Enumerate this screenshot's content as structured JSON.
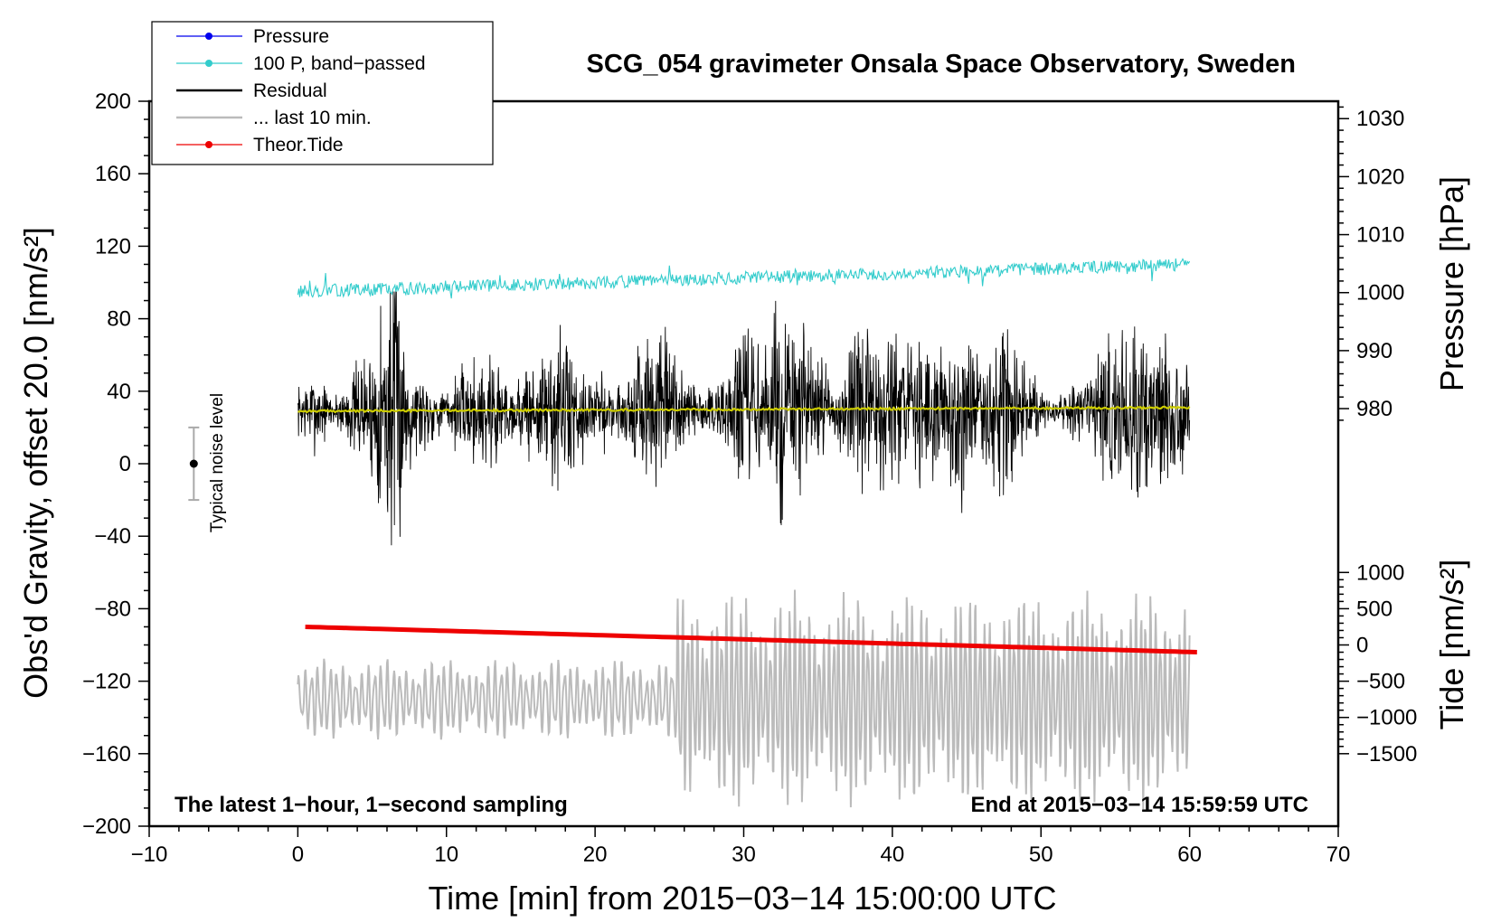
{
  "chart_data": {
    "type": "line",
    "title": "SCG_054 gravimeter Onsala Space Observatory, Sweden",
    "xlabel": "Time [min] from 2015−03−14 15:00:00 UTC",
    "ylabel_left": "Obs'd Gravity, offset 20.0 [nm/s²]",
    "ylabel_right_pressure": "Pressure [hPa]",
    "ylabel_right_tide": "Tide [nm/s²]",
    "xlim": [
      -10,
      70
    ],
    "ylim_left": [
      -200,
      200
    ],
    "x_ticks": [
      "−10",
      "0",
      "10",
      "20",
      "30",
      "40",
      "50",
      "60",
      "70"
    ],
    "y_ticks_left": [
      "200",
      "160",
      "120",
      "80",
      "40",
      "0",
      "−40",
      "−80",
      "−120",
      "−160",
      "−200"
    ],
    "pressure_ticks": [
      "1030",
      "1020",
      "1010",
      "1000",
      "990",
      "980"
    ],
    "tide_ticks": [
      "1000",
      "500",
      "0",
      "−500",
      "−1000",
      "−1500"
    ],
    "pressure_axis": {
      "at_left_y_top": 200,
      "hpa_top": 1033,
      "hpa_per_left_unit": 0.3125
    },
    "tide_axis": {
      "zero_at_left_y": -100,
      "nms2_per_left_unit": 25
    },
    "legend": [
      {
        "label": "Pressure",
        "color": "#0000ee",
        "marker": true
      },
      {
        "label": "100 P, band−passed",
        "color": "#33cccc",
        "marker": true
      },
      {
        "label": "Residual",
        "color": "#000000",
        "marker": false
      },
      {
        "label": "... last 10 min.",
        "color": "#bbbbbb",
        "marker": false
      },
      {
        "label": "Theor.Tide",
        "color": "#ee0000",
        "marker": true
      }
    ],
    "annotations": {
      "left": "The latest 1−hour, 1−second sampling",
      "right": "End at 2015−03−14 15:59:59 UTC",
      "noise": "Typical noise level"
    },
    "noise_bar": {
      "x": -7,
      "y": 0,
      "half_range": 20
    },
    "series": [
      {
        "name": "Residual",
        "color": "#000000",
        "x_range": [
          0,
          60
        ],
        "mean": 29,
        "amplitude": 45,
        "seed": 7,
        "bursts": [
          [
            5.5,
            1.6,
            1.0
          ],
          [
            6.5,
            0.8,
            1.5
          ],
          [
            12.5,
            1.4,
            0.8
          ],
          [
            17.8,
            1.8,
            0.9
          ],
          [
            24.2,
            2.0,
            0.8
          ],
          [
            29.8,
            1.3,
            1.0
          ],
          [
            32.5,
            1.2,
            1.0
          ],
          [
            34.2,
            1.2,
            1.0
          ],
          [
            38.0,
            1.5,
            0.9
          ],
          [
            41.5,
            1.8,
            0.9
          ],
          [
            44.5,
            1.3,
            0.9
          ],
          [
            47.5,
            1.2,
            1.0
          ],
          [
            55.5,
            1.8,
            0.9
          ],
          [
            58.5,
            1.8,
            0.9
          ]
        ]
      },
      {
        "name": "Residual smoothed",
        "color": "#cccc00",
        "x_range": [
          0,
          60
        ],
        "start": 29,
        "end": 31
      },
      {
        "name": "100 P, band−passed",
        "color": "#33cccc",
        "x_range": [
          0,
          60
        ],
        "start": 95,
        "end": 110,
        "amplitude": 3.5,
        "seed": 13
      },
      {
        "name": "Theor.Tide",
        "color": "#ee0000",
        "x_range": [
          0.5,
          60.5
        ],
        "start_nms2": 250,
        "end_nms2": -100
      },
      {
        "name": "... last 10 min.",
        "color": "#bbbbbb",
        "x_range": [
          0,
          60
        ],
        "center": -130,
        "quiet_until": 25.5,
        "quiet_amplitude": 17,
        "loud_amplitude": 45,
        "seed": 29
      }
    ]
  }
}
